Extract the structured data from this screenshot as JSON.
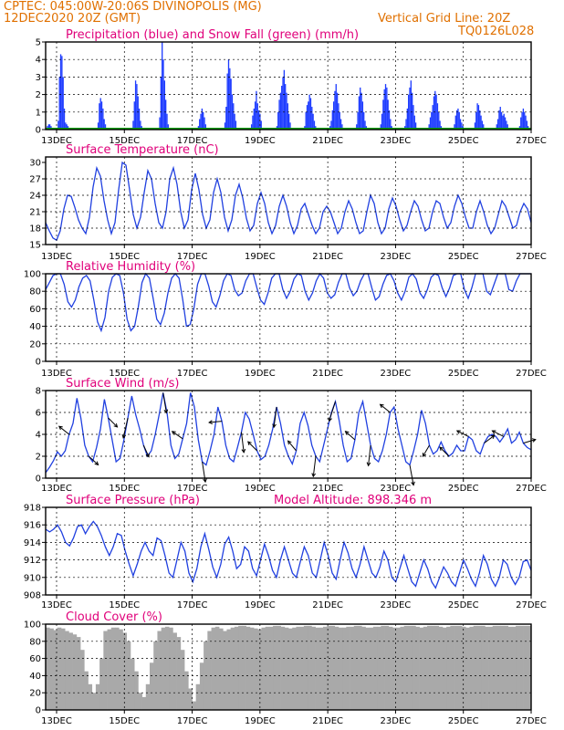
{
  "header": {
    "line1": "CPTEC:  045:00W-20:06S  DIVINOPOLIS (MG)",
    "line2": "12DEC2020 20Z (GMT)",
    "grid_note": "Vertical Grid Line: 20Z",
    "code": "TQ0126L028"
  },
  "colors": {
    "header": "#e07000",
    "panel_title": "#e0007a",
    "precip": "#1e3cff",
    "snow": "#00a000",
    "line": "#2040e0",
    "arrow": "#000000",
    "cloud": "#a9a9a9",
    "grid": "#000000"
  },
  "chart_data": [
    {
      "type": "bar",
      "title": "Precipitation (blue) and Snow Fall (green) (mm/h)",
      "x_labels": [
        "13DEC",
        "15DEC",
        "17DEC",
        "19DEC",
        "21DEC",
        "23DEC",
        "25DEC",
        "27DEC"
      ],
      "ylim": [
        0,
        5
      ],
      "yticks": [
        0,
        1,
        2,
        3,
        4,
        5
      ],
      "series": [
        {
          "name": "Precipitation",
          "color": "#1e3cff",
          "values": [
            0,
            0.2,
            0.3,
            0.3,
            0.2,
            0.1,
            0.1,
            0.1,
            0.1,
            0.1,
            0.5,
            3.0,
            4.3,
            4.2,
            3.0,
            1.2,
            0.4,
            0.3,
            0.2,
            0.1,
            0,
            0,
            0,
            0,
            0,
            0,
            0,
            0,
            0,
            0,
            0,
            0,
            0,
            0,
            0,
            0,
            0,
            0,
            0,
            0,
            0,
            0,
            0,
            0.4,
            1.5,
            1.8,
            1.6,
            1.2,
            0.6,
            0.3,
            0.1,
            0,
            0,
            0,
            0,
            0,
            0,
            0,
            0,
            0,
            0,
            0,
            0,
            0,
            0,
            0,
            0,
            0,
            0,
            0,
            0,
            0,
            0.5,
            1.6,
            2.8,
            2.6,
            1.9,
            1.2,
            0.5,
            0.2,
            0,
            0,
            0,
            0,
            0,
            0,
            0,
            0,
            0,
            0,
            0,
            0,
            0,
            0,
            0.7,
            3.0,
            5.0,
            4.0,
            2.8,
            1.7,
            0.9,
            0.3,
            0.1,
            0,
            0,
            0,
            0,
            0,
            0,
            0,
            0,
            0,
            0,
            0,
            0,
            0,
            0,
            0,
            0,
            0,
            0,
            0,
            0,
            0,
            0,
            0,
            0.2,
            0.6,
            0.9,
            1.2,
            1.0,
            0.7,
            0.3,
            0.1,
            0,
            0,
            0,
            0,
            0,
            0,
            0,
            0,
            0,
            0,
            0,
            0,
            0,
            0,
            0.4,
            1.3,
            3.2,
            4.0,
            3.5,
            2.9,
            2.0,
            1.5,
            0.9,
            0.5,
            0.1,
            0,
            0,
            0,
            0,
            0,
            0,
            0,
            0,
            0,
            0,
            0,
            0.3,
            0.8,
            1.2,
            1.6,
            2.2,
            1.5,
            1.1,
            0.9,
            0.5,
            0.1,
            0,
            0,
            0,
            0,
            0,
            0,
            0,
            0,
            0,
            0,
            0,
            0.2,
            1.0,
            1.7,
            2.1,
            2.5,
            3.0,
            3.4,
            2.6,
            2.1,
            1.5,
            0.9,
            0.4,
            0.1,
            0,
            0,
            0,
            0,
            0,
            0,
            0,
            0,
            0,
            0,
            0.2,
            1.0,
            1.4,
            1.6,
            2.0,
            1.8,
            1.3,
            0.9,
            0.5,
            0.2,
            0,
            0,
            0,
            0,
            0,
            0,
            0,
            0,
            0,
            0,
            0,
            0.2,
            0.5,
            1.1,
            1.6,
            2.2,
            2.6,
            2.1,
            1.5,
            1.0,
            0.6,
            0.3,
            0.1,
            0,
            0,
            0,
            0,
            0,
            0,
            0,
            0,
            0,
            0,
            0.3,
            1.0,
            1.9,
            2.4,
            2.1,
            1.6,
            1.0,
            0.5,
            0.2,
            0,
            0,
            0,
            0,
            0,
            0,
            0,
            0,
            0,
            0,
            0,
            0.3,
            0.9,
            1.7,
            2.3,
            2.6,
            2.4,
            1.7,
            1.1,
            0.6,
            0.2,
            0,
            0,
            0,
            0,
            0,
            0,
            0,
            0,
            0,
            0,
            0.2,
            0.6,
            1.2,
            2.0,
            2.4,
            2.8,
            2.1,
            1.4,
            0.8,
            0.4,
            0.1,
            0,
            0,
            0,
            0,
            0,
            0,
            0,
            0,
            0.1,
            0.3,
            0.7,
            1.0,
            1.4,
            1.9,
            2.2,
            2.0,
            1.5,
            1.0,
            0.5,
            0.2,
            0,
            0,
            0,
            0,
            0,
            0,
            0,
            0,
            0,
            0,
            0.3,
            0.8,
            1.1,
            1.2,
            1.0,
            0.6,
            0.4,
            0.2,
            0,
            0,
            0,
            0,
            0,
            0,
            0,
            0,
            0.1,
            0.4,
            1.0,
            1.5,
            1.4,
            1.1,
            0.8,
            0.5,
            0.3,
            0.1,
            0,
            0,
            0,
            0,
            0,
            0,
            0,
            0,
            0.1,
            0.3,
            0.6,
            1.1,
            1.3,
            1.0,
            0.8,
            0.9,
            0.7,
            0.5,
            0.3,
            0.1,
            0,
            0,
            0,
            0,
            0,
            0,
            0,
            0.1,
            0.2,
            0.7,
            1.0,
            1.2,
            1.0,
            0.8,
            0.5,
            0.2,
            0.1,
            0
          ]
        },
        {
          "name": "Snow Fall",
          "color": "#00a000",
          "values": [
            0
          ]
        }
      ]
    },
    {
      "type": "line",
      "title": "Surface Temperature (nC)",
      "x_labels": [
        "13DEC",
        "15DEC",
        "17DEC",
        "19DEC",
        "21DEC",
        "23DEC",
        "25DEC",
        "27DEC"
      ],
      "ylim": [
        15,
        31
      ],
      "yticks": [
        15,
        18,
        21,
        24,
        27,
        30
      ],
      "values": [
        19.0,
        17.5,
        16.2,
        15.8,
        17.5,
        21.5,
        24.0,
        23.8,
        21.8,
        19.5,
        18.0,
        17.0,
        20.0,
        25.5,
        29.0,
        27.5,
        23.0,
        19.5,
        17.0,
        19.0,
        25.0,
        30.0,
        29.5,
        25.0,
        20.5,
        18.0,
        20.0,
        24.5,
        28.5,
        27.0,
        22.5,
        19.0,
        18.0,
        21.0,
        27.0,
        29.0,
        26.0,
        21.0,
        18.0,
        19.5,
        25.0,
        28.0,
        25.0,
        20.5,
        18.0,
        19.5,
        24.5,
        27.0,
        24.5,
        20.0,
        17.5,
        19.5,
        24.0,
        26.0,
        23.5,
        19.8,
        17.5,
        18.5,
        22.5,
        24.5,
        22.5,
        19.0,
        17.0,
        18.5,
        22.0,
        24.0,
        22.0,
        19.0,
        17.0,
        18.5,
        21.5,
        22.5,
        20.5,
        18.5,
        17.0,
        18.0,
        21.0,
        22.0,
        21.0,
        19.0,
        17.0,
        18.0,
        21.0,
        23.0,
        21.5,
        19.0,
        17.0,
        17.5,
        21.0,
        24.0,
        22.5,
        19.0,
        17.0,
        18.0,
        21.5,
        23.5,
        22.0,
        19.5,
        17.5,
        18.5,
        21.0,
        23.0,
        22.0,
        19.5,
        17.5,
        18.0,
        21.0,
        23.0,
        22.5,
        20.0,
        18.0,
        19.0,
        22.0,
        24.0,
        22.5,
        20.0,
        18.0,
        18.0,
        21.0,
        23.0,
        21.0,
        18.5,
        17.0,
        18.0,
        20.5,
        23.0,
        22.0,
        20.0,
        18.0,
        18.5,
        21.0,
        22.5,
        21.5,
        19.0
      ]
    },
    {
      "type": "line",
      "title": "Relative Humidity (%)",
      "x_labels": [
        "13DEC",
        "15DEC",
        "17DEC",
        "19DEC",
        "21DEC",
        "23DEC",
        "25DEC",
        "27DEC"
      ],
      "ylim": [
        0,
        100
      ],
      "yticks": [
        0,
        20,
        40,
        60,
        80,
        100
      ],
      "values": [
        82,
        90,
        98,
        100,
        100,
        88,
        68,
        62,
        70,
        85,
        95,
        98,
        92,
        70,
        45,
        35,
        50,
        80,
        96,
        100,
        98,
        78,
        48,
        35,
        40,
        62,
        90,
        100,
        95,
        72,
        48,
        42,
        55,
        78,
        95,
        100,
        95,
        70,
        40,
        42,
        60,
        88,
        100,
        100,
        86,
        68,
        62,
        75,
        92,
        100,
        98,
        82,
        75,
        78,
        92,
        100,
        100,
        84,
        70,
        65,
        78,
        95,
        100,
        100,
        82,
        72,
        80,
        94,
        100,
        98,
        80,
        70,
        78,
        92,
        100,
        95,
        78,
        72,
        76,
        90,
        100,
        100,
        84,
        75,
        80,
        92,
        100,
        100,
        84,
        70,
        74,
        88,
        98,
        100,
        92,
        78,
        70,
        80,
        96,
        100,
        94,
        78,
        72,
        82,
        96,
        100,
        98,
        84,
        74,
        84,
        98,
        100,
        100,
        82,
        72,
        84,
        100,
        100,
        100,
        80,
        76,
        88,
        100,
        100,
        100,
        82,
        80,
        92,
        100,
        100,
        100,
        100
      ]
    },
    {
      "type": "line",
      "title": "Surface Wind (m/s)",
      "x_labels": [
        "13DEC",
        "15DEC",
        "17DEC",
        "19DEC",
        "21DEC",
        "23DEC",
        "25DEC",
        "27DEC"
      ],
      "ylim": [
        0,
        8
      ],
      "yticks": [
        0,
        2,
        4,
        6,
        8
      ],
      "values": [
        0.5,
        1.0,
        1.6,
        2.4,
        2.0,
        2.5,
        4.0,
        5.0,
        7.3,
        5.5,
        3.0,
        2.0,
        1.5,
        2.8,
        4.5,
        7.2,
        5.5,
        3.5,
        1.5,
        1.8,
        3.5,
        5.5,
        7.5,
        5.8,
        4.5,
        3.0,
        2.0,
        2.5,
        4.0,
        5.8,
        7.8,
        6.0,
        3.0,
        1.8,
        2.2,
        3.6,
        5.0,
        7.8,
        6.5,
        3.5,
        1.5,
        1.2,
        2.5,
        4.0,
        6.5,
        5.2,
        3.0,
        1.8,
        1.5,
        2.8,
        4.2,
        6.0,
        5.4,
        4.0,
        2.5,
        1.7,
        2.0,
        3.0,
        4.5,
        6.5,
        5.0,
        3.0,
        2.0,
        1.3,
        2.5,
        5.0,
        6.0,
        4.8,
        3.0,
        2.0,
        1.5,
        3.0,
        4.5,
        6.0,
        7.0,
        5.2,
        3.0,
        1.5,
        1.8,
        3.5,
        6.0,
        7.0,
        5.0,
        3.0,
        1.8,
        1.5,
        2.5,
        4.0,
        6.0,
        6.5,
        4.5,
        3.0,
        1.5,
        1.2,
        2.5,
        4.0,
        6.2,
        5.0,
        3.0,
        2.2,
        2.5,
        3.3,
        2.5,
        2.0,
        2.3,
        3.0,
        2.5,
        2.5,
        3.8,
        3.5,
        2.5,
        2.2,
        3.2,
        3.8,
        4.0,
        3.8,
        3.3,
        3.8,
        4.5,
        3.2,
        3.5,
        4.2,
        3.2,
        2.8,
        2.6
      ]
    },
    {
      "type": "line",
      "title": "Surface Pressure (hPa)",
      "subtitle": "Model Altitude: 898.346 m",
      "x_labels": [
        "13DEC",
        "15DEC",
        "17DEC",
        "19DEC",
        "21DEC",
        "23DEC",
        "25DEC",
        "27DEC"
      ],
      "ylim": [
        908,
        918
      ],
      "yticks": [
        908,
        910,
        912,
        914,
        916,
        918
      ],
      "values": [
        915.5,
        915.2,
        915.5,
        916.0,
        915.2,
        914.0,
        913.6,
        914.5,
        915.8,
        916.0,
        915.0,
        915.8,
        916.4,
        915.8,
        914.8,
        913.5,
        912.5,
        913.5,
        915.0,
        914.8,
        913.0,
        911.5,
        910.2,
        911.5,
        913.0,
        914.0,
        913.0,
        912.5,
        914.5,
        914.2,
        912.5,
        910.5,
        910.0,
        912.0,
        914.0,
        913.0,
        910.5,
        909.5,
        911.0,
        913.5,
        915.0,
        913.2,
        911.2,
        910.0,
        911.5,
        913.8,
        914.6,
        913.0,
        911.0,
        911.5,
        913.5,
        913.0,
        911.0,
        910.2,
        912.0,
        913.8,
        912.5,
        910.8,
        910.0,
        912.0,
        913.5,
        912.0,
        910.5,
        910.0,
        911.8,
        913.5,
        912.5,
        910.5,
        910.0,
        912.0,
        914.0,
        912.5,
        910.5,
        909.8,
        912.0,
        914.0,
        912.8,
        911.0,
        910.0,
        911.5,
        913.5,
        912.0,
        910.5,
        910.0,
        911.2,
        913.0,
        912.0,
        910.0,
        909.5,
        911.0,
        912.5,
        911.0,
        909.5,
        909.0,
        910.5,
        912.0,
        911.0,
        909.5,
        908.8,
        910.0,
        911.2,
        910.5,
        909.5,
        909.0,
        910.5,
        912.0,
        911.0,
        909.8,
        909.0,
        910.5,
        912.5,
        911.5,
        909.8,
        909.0,
        910.0,
        912.0,
        911.5,
        910.0,
        909.2,
        910.0,
        911.8,
        912.0,
        910.8
      ]
    },
    {
      "type": "area",
      "title": "Cloud Cover (%)",
      "x_labels": [
        "13DEC",
        "15DEC",
        "17DEC",
        "19DEC",
        "21DEC",
        "23DEC",
        "25DEC",
        "27DEC"
      ],
      "ylim": [
        0,
        100
      ],
      "yticks": [
        0,
        20,
        40,
        60,
        80,
        100
      ],
      "values": [
        96,
        95,
        93,
        96,
        95,
        92,
        90,
        88,
        85,
        70,
        45,
        30,
        20,
        30,
        60,
        92,
        94,
        96,
        96,
        94,
        90,
        80,
        60,
        45,
        20,
        15,
        30,
        55,
        80,
        92,
        96,
        97,
        96,
        90,
        85,
        70,
        45,
        25,
        10,
        30,
        55,
        80,
        92,
        96,
        97,
        95,
        92,
        94,
        96,
        97,
        98,
        98,
        97,
        96,
        95,
        94,
        96,
        97,
        97,
        98,
        98,
        97,
        96,
        95,
        96,
        97,
        97,
        98,
        98,
        97,
        96,
        96,
        97,
        98,
        98,
        97,
        96,
        96,
        97,
        97,
        98,
        98,
        97,
        96,
        96,
        97,
        97,
        98,
        98,
        97,
        96,
        96,
        97,
        98,
        98,
        98,
        97,
        96,
        97,
        98,
        98,
        98,
        97,
        96,
        97,
        98,
        98,
        98,
        97,
        96,
        97,
        98,
        98,
        98,
        97,
        97,
        98,
        98,
        98,
        98,
        97,
        97,
        98,
        98,
        98,
        98
      ]
    }
  ]
}
